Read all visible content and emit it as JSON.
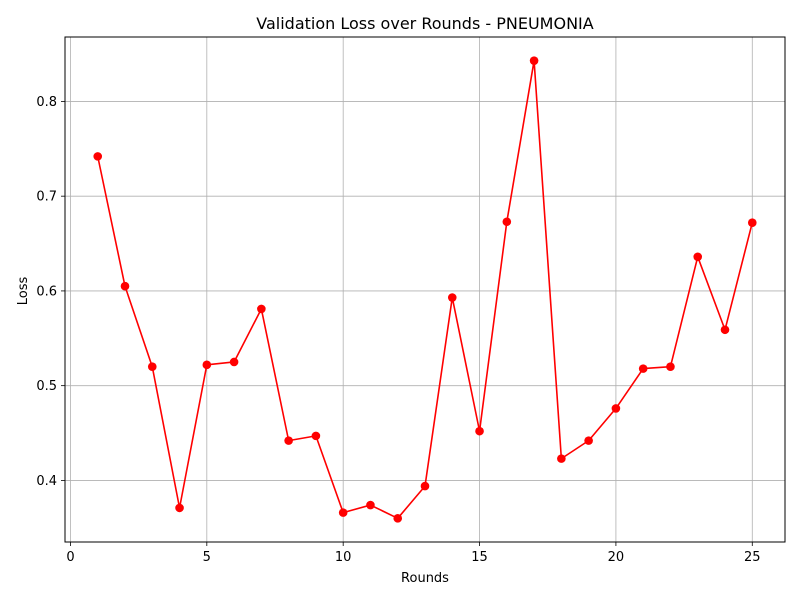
{
  "chart_data": {
    "type": "line",
    "title": "Validation Loss over Rounds - PNEUMONIA",
    "xlabel": "Rounds",
    "ylabel": "Loss",
    "xlim": [
      -0.2,
      26.2
    ],
    "ylim": [
      0.335,
      0.868
    ],
    "x_ticks": [
      0,
      5,
      10,
      15,
      20,
      25
    ],
    "y_ticks": [
      0.4,
      0.5,
      0.6,
      0.7,
      0.8
    ],
    "x_tick_labels": [
      "0",
      "5",
      "10",
      "15",
      "20",
      "25"
    ],
    "y_tick_labels": [
      "0.4",
      "0.5",
      "0.6",
      "0.7",
      "0.8"
    ],
    "grid": true,
    "series": [
      {
        "color": "#ff0000",
        "marker": "circle",
        "x": [
          1,
          2,
          3,
          4,
          5,
          6,
          7,
          8,
          9,
          10,
          11,
          12,
          13,
          14,
          15,
          16,
          17,
          18,
          19,
          20,
          21,
          22,
          23,
          24,
          25
        ],
        "y": [
          0.742,
          0.605,
          0.52,
          0.371,
          0.522,
          0.525,
          0.581,
          0.442,
          0.447,
          0.366,
          0.374,
          0.36,
          0.394,
          0.593,
          0.452,
          0.673,
          0.843,
          0.423,
          0.442,
          0.476,
          0.518,
          0.52,
          0.636,
          0.559,
          0.672
        ]
      }
    ]
  }
}
